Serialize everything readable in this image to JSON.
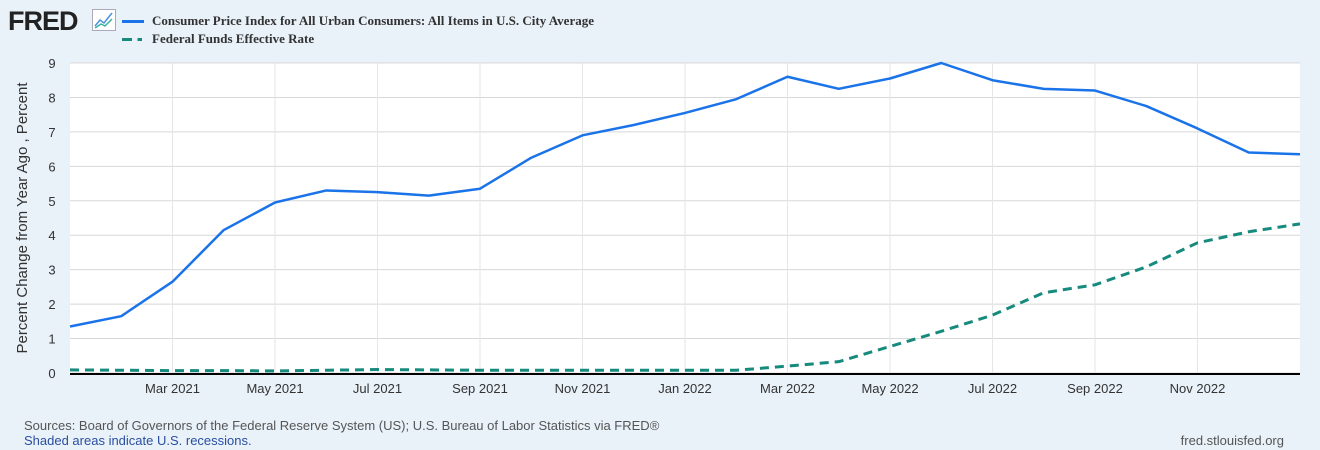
{
  "logo": "FRED",
  "chart_data": {
    "type": "line",
    "title": "",
    "ylabel": "Percent Change from Year Ago , Percent",
    "xlabel": "",
    "ylim": [
      0,
      9
    ],
    "yticks": [
      0,
      1,
      2,
      3,
      4,
      5,
      6,
      7,
      8,
      9
    ],
    "xticks": [
      "Mar 2021",
      "May 2021",
      "Jul 2021",
      "Sep 2021",
      "Nov 2021",
      "Jan 2022",
      "Mar 2022",
      "May 2022",
      "Jul 2022",
      "Sep 2022",
      "Nov 2022"
    ],
    "grid": true,
    "legend_position": "top",
    "x": [
      "2021-01",
      "2021-02",
      "2021-03",
      "2021-04",
      "2021-05",
      "2021-06",
      "2021-07",
      "2021-08",
      "2021-09",
      "2021-10",
      "2021-11",
      "2021-12",
      "2022-01",
      "2022-02",
      "2022-03",
      "2022-04",
      "2022-05",
      "2022-06",
      "2022-07",
      "2022-08",
      "2022-09",
      "2022-10",
      "2022-11",
      "2022-12",
      "2023-01"
    ],
    "series": [
      {
        "name": "Consumer Price Index for All Urban Consumers: All Items in U.S. City Average",
        "color": "#1a73e8",
        "style": "solid",
        "values": [
          1.35,
          1.65,
          2.65,
          4.15,
          4.95,
          5.3,
          5.25,
          5.15,
          5.35,
          6.25,
          6.9,
          7.2,
          7.55,
          7.95,
          8.6,
          8.25,
          8.55,
          9.0,
          8.5,
          8.25,
          8.2,
          7.75,
          7.1,
          6.4,
          6.35
        ]
      },
      {
        "name": "Federal Funds Effective Rate",
        "color": "#168a7c",
        "style": "dashed",
        "values": [
          0.09,
          0.08,
          0.07,
          0.07,
          0.06,
          0.08,
          0.1,
          0.09,
          0.08,
          0.08,
          0.08,
          0.08,
          0.08,
          0.08,
          0.2,
          0.33,
          0.77,
          1.21,
          1.68,
          2.33,
          2.56,
          3.08,
          3.78,
          4.1,
          4.33
        ]
      }
    ]
  },
  "footer": {
    "sources": "Sources: Board of Governors of the Federal Reserve System (US); U.S. Bureau of Labor Statistics via FRED®",
    "recessions": "Shaded areas indicate U.S. recessions.",
    "site": "fred.stlouisfed.org"
  }
}
